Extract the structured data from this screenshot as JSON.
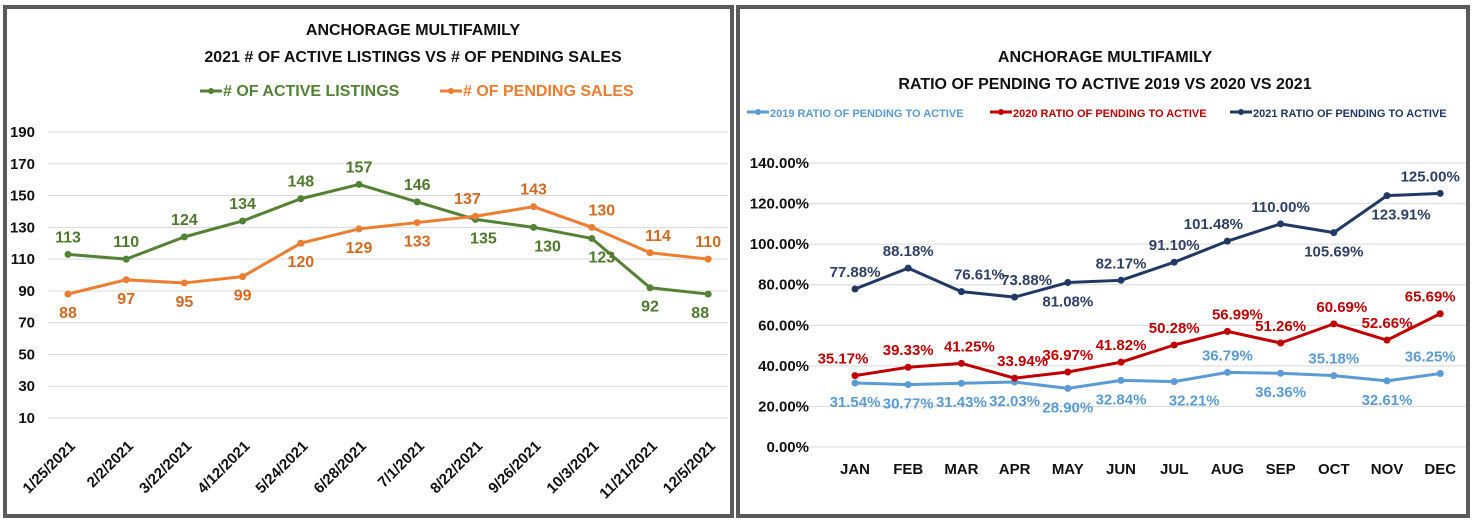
{
  "chart_data": [
    {
      "type": "line",
      "title": "ANCHORAGE MULTIFAMILY",
      "subtitle": "2021 # OF ACTIVE LISTINGS VS # OF PENDING SALES",
      "categories": [
        "1/25/2021",
        "2/2/2021",
        "3/22/2021",
        "4/12/2021",
        "5/24/2021",
        "6/28/2021",
        "7/1/2021",
        "8/22/2021",
        "9/26/2021",
        "10/3/2021",
        "11/21/2021",
        "12/5/2021"
      ],
      "yticks": [
        "190",
        "170",
        "150",
        "130",
        "110",
        "90",
        "70",
        "50",
        "30",
        "10"
      ],
      "ylim": [
        10,
        190
      ],
      "grid": true,
      "legend": "top",
      "series": [
        {
          "name": "# OF ACTIVE LISTINGS",
          "color": "#548235",
          "label_color": "#4e7a2e",
          "values": [
            113,
            110,
            124,
            134,
            148,
            157,
            146,
            135,
            130,
            123,
            92,
            88
          ]
        },
        {
          "name": "# OF PENDING SALES",
          "color": "#ed7d31",
          "label_color": "#d26a22",
          "values": [
            88,
            97,
            95,
            99,
            120,
            129,
            133,
            137,
            143,
            130,
            114,
            110
          ]
        }
      ]
    },
    {
      "type": "line",
      "title": "ANCHORAGE MULTIFAMILY",
      "subtitle": "RATIO OF PENDING TO ACTIVE 2019 VS 2020 VS 2021",
      "categories": [
        "JAN",
        "FEB",
        "MAR",
        "APR",
        "MAY",
        "JUN",
        "JUL",
        "AUG",
        "SEP",
        "OCT",
        "NOV",
        "DEC"
      ],
      "yticks": [
        "140.00%",
        "120.00%",
        "100.00%",
        "80.00%",
        "60.00%",
        "40.00%",
        "20.00%",
        "0.00%"
      ],
      "ylim": [
        0,
        140
      ],
      "grid": true,
      "legend": "top",
      "series": [
        {
          "name": "2019 RATIO OF PENDING TO ACTIVE",
          "color": "#5b9bd5",
          "label_color": "#5b9bd5",
          "values": [
            31.54,
            30.77,
            31.43,
            32.03,
            28.9,
            32.84,
            32.21,
            36.79,
            36.36,
            35.18,
            32.61,
            36.25
          ],
          "labels": [
            "31.54%",
            "30.77%",
            "31.43%",
            "32.03%",
            "28.90%",
            "32.84%",
            "32.21%",
            "36.79%",
            "36.36%",
            "35.18%",
            "32.61%",
            "36.25%"
          ]
        },
        {
          "name": "2020 RATIO OF PENDING TO ACTIVE",
          "color": "#c00000",
          "label_color": "#c00000",
          "values": [
            35.17,
            39.33,
            41.25,
            33.94,
            36.97,
            41.82,
            50.28,
            56.99,
            51.26,
            60.69,
            52.66,
            65.69
          ],
          "labels": [
            "35.17%",
            "39.33%",
            "41.25%",
            "33.94%",
            "36.97%",
            "41.82%",
            "50.28%",
            "56.99%",
            "51.26%",
            "60.69%",
            "52.66%",
            "65.69%"
          ]
        },
        {
          "name": "2021 RATIO OF PENDING TO ACTIVE",
          "color": "#203864",
          "label_color": "#2f3f66",
          "values": [
            77.88,
            88.18,
            76.61,
            73.88,
            81.08,
            82.17,
            91.1,
            101.48,
            110.0,
            105.69,
            123.91,
            125.0
          ],
          "labels": [
            "77.88%",
            "88.18%",
            "76.61%",
            "73.88%",
            "81.08%",
            "82.17%",
            "91.10%",
            "101.48%",
            "110.00%",
            "105.69%",
            "123.91%",
            "125.00%"
          ]
        }
      ]
    }
  ]
}
